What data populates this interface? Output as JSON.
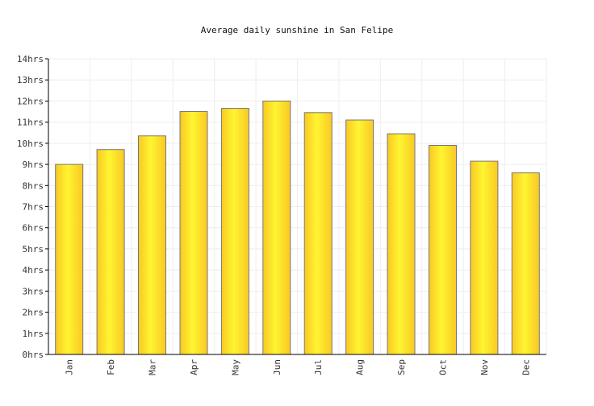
{
  "chart_data": {
    "type": "bar",
    "title": "Average daily sunshine in San Felipe",
    "categories": [
      "Jan",
      "Feb",
      "Mar",
      "Apr",
      "May",
      "Jun",
      "Jul",
      "Aug",
      "Sep",
      "Oct",
      "Nov",
      "Dec"
    ],
    "values": [
      9.0,
      9.7,
      10.35,
      11.5,
      11.65,
      12.0,
      11.45,
      11.1,
      10.45,
      9.9,
      9.15,
      8.6
    ],
    "ylim": [
      0,
      14
    ],
    "yticks": [
      "0hrs",
      "1hrs",
      "2hrs",
      "3hrs",
      "4hrs",
      "5hrs",
      "6hrs",
      "7hrs",
      "8hrs",
      "9hrs",
      "10hrs",
      "11hrs",
      "12hrs",
      "13hrs",
      "14hrs"
    ],
    "xlabel": "",
    "ylabel": "",
    "grid": true,
    "colors": {
      "bar_light": "#fff530",
      "bar_dark": "#f9c825",
      "bar_stroke": "#777777",
      "grid": "#eeeeee",
      "axis": "#000000"
    }
  }
}
